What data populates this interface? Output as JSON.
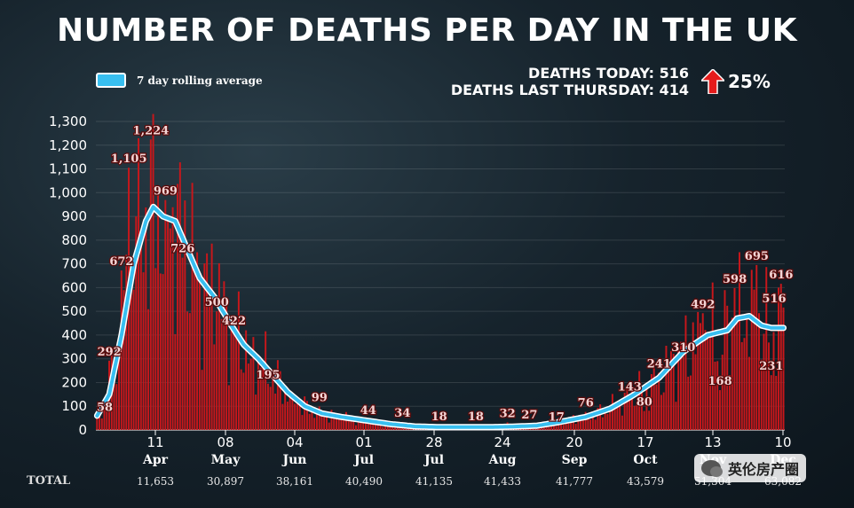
{
  "header": {
    "title": "NUMBER OF DEATHS PER DAY IN THE UK"
  },
  "legend": {
    "label": "7 day rolling average",
    "color": "#38bff0"
  },
  "stats": {
    "today_label": "DEATHS TODAY: 516",
    "last_thursday_label": "DEATHS LAST THURSDAY: 414",
    "change": "25%",
    "arrow_color": "#e51b1b"
  },
  "totals": {
    "label": "TOTAL",
    "values": [
      "11,653",
      "30,897",
      "38,161",
      "40,490",
      "41,135",
      "41,433",
      "41,777",
      "43,579",
      "51,304",
      "63,082"
    ]
  },
  "watermark": {
    "text": "英伦房产圈"
  },
  "chart_data": {
    "type": "bar",
    "title": "NUMBER OF DEATHS PER DAY IN THE UK",
    "ylim": [
      0,
      1300
    ],
    "yticks": [
      "0",
      "100",
      "200",
      "300",
      "400",
      "500",
      "600",
      "700",
      "800",
      "900",
      "1,000",
      "1,100",
      "1,200",
      "1,300"
    ],
    "xticks": [
      {
        "day": "11",
        "month": "Apr"
      },
      {
        "day": "08",
        "month": "May"
      },
      {
        "day": "04",
        "month": "Jun"
      },
      {
        "day": "01",
        "month": "Jul"
      },
      {
        "day": "28",
        "month": "Jul"
      },
      {
        "day": "24",
        "month": "Aug"
      },
      {
        "day": "20",
        "month": "Sep"
      },
      {
        "day": "17",
        "month": "Oct"
      },
      {
        "day": "13",
        "month": "Nov"
      },
      {
        "day": "10",
        "month": "Dec"
      }
    ],
    "bar_color": "#c8171b",
    "line_color": "#38bff0",
    "series": [
      {
        "name": "7 day rolling average",
        "type": "line",
        "anchors": [
          [
            0,
            60
          ],
          [
            5,
            150
          ],
          [
            10,
            400
          ],
          [
            15,
            700
          ],
          [
            20,
            880
          ],
          [
            23,
            940
          ],
          [
            27,
            900
          ],
          [
            32,
            880
          ],
          [
            37,
            760
          ],
          [
            42,
            640
          ],
          [
            48,
            560
          ],
          [
            55,
            440
          ],
          [
            60,
            360
          ],
          [
            66,
            300
          ],
          [
            72,
            230
          ],
          [
            78,
            160
          ],
          [
            85,
            100
          ],
          [
            92,
            70
          ],
          [
            100,
            55
          ],
          [
            110,
            40
          ],
          [
            120,
            25
          ],
          [
            130,
            15
          ],
          [
            140,
            12
          ],
          [
            150,
            12
          ],
          [
            160,
            12
          ],
          [
            170,
            14
          ],
          [
            180,
            18
          ],
          [
            190,
            35
          ],
          [
            200,
            55
          ],
          [
            210,
            90
          ],
          [
            220,
            150
          ],
          [
            230,
            220
          ],
          [
            240,
            330
          ],
          [
            250,
            400
          ],
          [
            258,
            420
          ],
          [
            262,
            470
          ],
          [
            267,
            480
          ],
          [
            272,
            440
          ],
          [
            276,
            430
          ],
          [
            281,
            430
          ]
        ]
      },
      {
        "name": "daily",
        "type": "bar",
        "anchors": [
          [
            0,
            58
          ],
          [
            5,
            292
          ],
          [
            10,
            672
          ],
          [
            13,
            1105
          ],
          [
            16,
            900
          ],
          [
            22,
            1224
          ],
          [
            28,
            969
          ],
          [
            35,
            726
          ],
          [
            42,
            650
          ],
          [
            49,
            500
          ],
          [
            56,
            422
          ],
          [
            63,
            300
          ],
          [
            70,
            195
          ],
          [
            80,
            150
          ],
          [
            91,
            99
          ],
          [
            100,
            60
          ],
          [
            111,
            44
          ],
          [
            125,
            34
          ],
          [
            140,
            18
          ],
          [
            155,
            18
          ],
          [
            168,
            32
          ],
          [
            177,
            27
          ],
          [
            188,
            17
          ],
          [
            200,
            76
          ],
          [
            210,
            100
          ],
          [
            218,
            143
          ],
          [
            224,
            80
          ],
          [
            230,
            241
          ],
          [
            240,
            310
          ],
          [
            248,
            492
          ],
          [
            255,
            168
          ],
          [
            261,
            598
          ],
          [
            270,
            695
          ],
          [
            276,
            231
          ],
          [
            280,
            616
          ],
          [
            281,
            516
          ]
        ]
      }
    ],
    "annotations": [
      {
        "i": 0,
        "text": "58"
      },
      {
        "i": 5,
        "text": "292"
      },
      {
        "i": 10,
        "text": "672"
      },
      {
        "i": 13,
        "text": "1,105"
      },
      {
        "i": 22,
        "text": "1,224"
      },
      {
        "i": 28,
        "text": "969"
      },
      {
        "i": 35,
        "text": "726"
      },
      {
        "i": 49,
        "text": "500"
      },
      {
        "i": 56,
        "text": "422"
      },
      {
        "i": 70,
        "text": "195"
      },
      {
        "i": 91,
        "text": "99"
      },
      {
        "i": 111,
        "text": "44"
      },
      {
        "i": 125,
        "text": "34"
      },
      {
        "i": 140,
        "text": "18"
      },
      {
        "i": 155,
        "text": "18"
      },
      {
        "i": 168,
        "text": "32"
      },
      {
        "i": 177,
        "text": "27"
      },
      {
        "i": 188,
        "text": "17"
      },
      {
        "i": 200,
        "text": "76"
      },
      {
        "i": 218,
        "text": "143"
      },
      {
        "i": 224,
        "text": "80"
      },
      {
        "i": 230,
        "text": "241"
      },
      {
        "i": 240,
        "text": "310"
      },
      {
        "i": 248,
        "text": "492"
      },
      {
        "i": 255,
        "text": "168"
      },
      {
        "i": 261,
        "text": "598"
      },
      {
        "i": 270,
        "text": "695"
      },
      {
        "i": 276,
        "text": "231"
      },
      {
        "i": 280,
        "text": "616"
      },
      {
        "i": 281,
        "text": "516"
      }
    ]
  }
}
